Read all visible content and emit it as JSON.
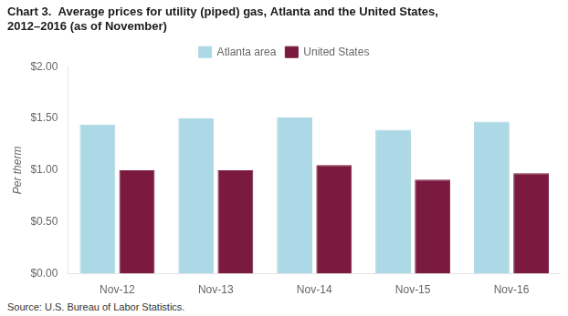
{
  "chart_data": {
    "type": "bar",
    "title": [
      "Chart 3.  Average prices for utility (piped) gas, Atlanta and the United States,",
      "2012–2016 (as of November)"
    ],
    "ylabel": "Per therm",
    "source": "Source:  U.S. Bureau of Labor Statistics.",
    "categories": [
      "Nov-12",
      "Nov-13",
      "Nov-14",
      "Nov-15",
      "Nov-16"
    ],
    "series": [
      {
        "name": "Atlanta area",
        "color": "#add8e6",
        "values": [
          1.44,
          1.5,
          1.51,
          1.39,
          1.47
        ]
      },
      {
        "name": "United States",
        "color": "#7b1a3f",
        "values": [
          1.0,
          1.0,
          1.05,
          0.91,
          0.97
        ]
      }
    ],
    "ylim": [
      0,
      2
    ],
    "yticks": [
      {
        "value": 0,
        "label": "$0.00"
      },
      {
        "value": 0.5,
        "label": "$0.50"
      },
      {
        "value": 1,
        "label": "$1.00"
      },
      {
        "value": 1.5,
        "label": "$1.50"
      },
      {
        "value": 2,
        "label": "$2.00"
      }
    ],
    "grid": false,
    "legend": "top"
  }
}
